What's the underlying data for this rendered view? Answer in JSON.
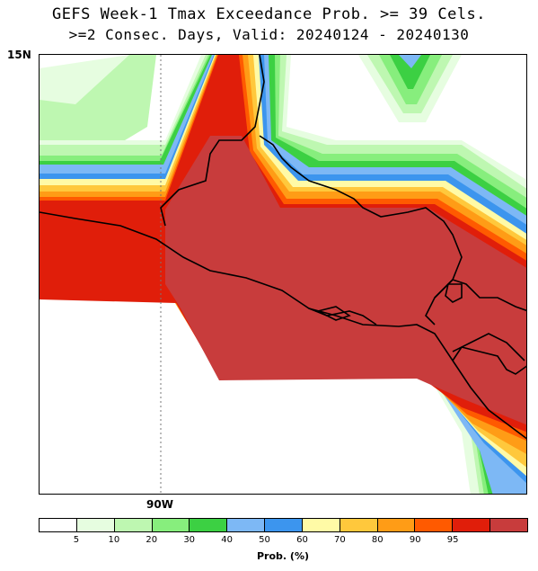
{
  "title_line1": "GEFS Week-1 Tmax Exceedance Prob. >= 39 Cels.",
  "title_line2": ">=2 Consec. Days, Valid: 20240124 - 20240130",
  "lat_label": "15N",
  "lon_label": "90W",
  "colorbar": {
    "title": "Prob. (%)",
    "colors": [
      "#ffffff",
      "#e6fde0",
      "#bef7b1",
      "#87ee7d",
      "#3cd043",
      "#7db8f5",
      "#3c95ee",
      "#fffaa6",
      "#ffc83c",
      "#ff9c16",
      "#ff5a00",
      "#e01e0a",
      "#c83c3c"
    ],
    "ticks": [
      "5",
      "10",
      "20",
      "30",
      "40",
      "50",
      "60",
      "70",
      "80",
      "90",
      "95"
    ]
  },
  "legend_note": "probability bands from 5% (lightest green) to >95% (dark red)"
}
